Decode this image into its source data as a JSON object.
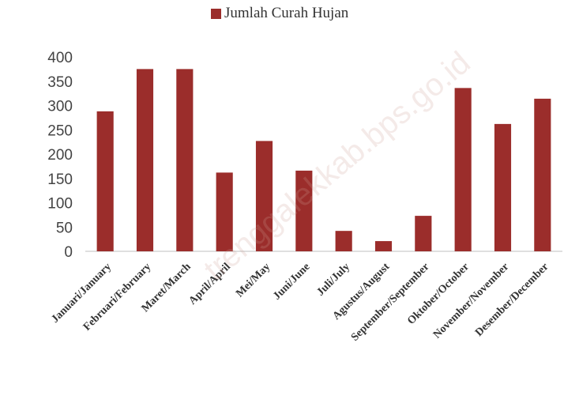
{
  "chart_data": {
    "type": "bar",
    "legend": {
      "label": "Jumlah Curah Hujan",
      "position": "top"
    },
    "categories": [
      "Januari/January",
      "Februari/February",
      "Maret/March",
      "April/April",
      "Mei/May",
      "Juni/June",
      "Juli/July",
      "Agustus/August",
      "September/September",
      "Oktober/October",
      "November/November",
      "Desember/December"
    ],
    "series": [
      {
        "name": "Jumlah Curah Hujan",
        "values": [
          288,
          375,
          375,
          162,
          227,
          166,
          42,
          21,
          73,
          336,
          262,
          314
        ]
      }
    ],
    "ylim": [
      0,
      400
    ],
    "yticks": [
      0,
      50,
      100,
      150,
      200,
      250,
      300,
      350,
      400
    ],
    "grid": false,
    "color": "#9b2d2b"
  },
  "watermark": "trenggalekkab.bps.go.id"
}
